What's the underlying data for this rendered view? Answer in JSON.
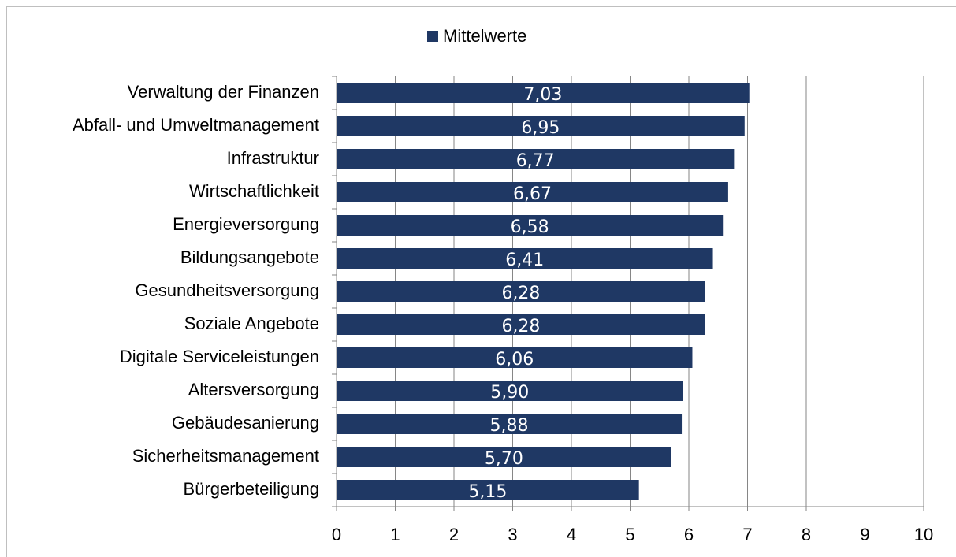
{
  "chart_data": {
    "type": "bar",
    "orientation": "horizontal",
    "categories": [
      "Verwaltung der Finanzen",
      "Abfall- und Umweltmanagement",
      "Infrastruktur",
      "Wirtschaftlichkeit",
      "Energieversorgung",
      "Bildungsangebote",
      "Gesundheitsversorgung",
      "Soziale Angebote",
      "Digitale Serviceleistungen",
      "Altersversorgung",
      "Gebäudesanierung",
      "Sicherheitsmanagement",
      "Bürgerbeteiligung"
    ],
    "series": [
      {
        "name": "Mittelwerte",
        "color": "#1f3864",
        "values": [
          7.03,
          6.95,
          6.77,
          6.67,
          6.58,
          6.41,
          6.28,
          6.28,
          6.06,
          5.9,
          5.88,
          5.7,
          5.15
        ],
        "value_labels": [
          "7,03",
          "6,95",
          "6,77",
          "6,67",
          "6,58",
          "6,41",
          "6,28",
          "6,28",
          "6,06",
          "5,90",
          "5,88",
          "5,70",
          "5,15"
        ]
      }
    ],
    "xlim": [
      0,
      10
    ],
    "xticks": [
      0,
      1,
      2,
      3,
      4,
      5,
      6,
      7,
      8,
      9,
      10
    ],
    "grid": true,
    "legend": "top"
  }
}
